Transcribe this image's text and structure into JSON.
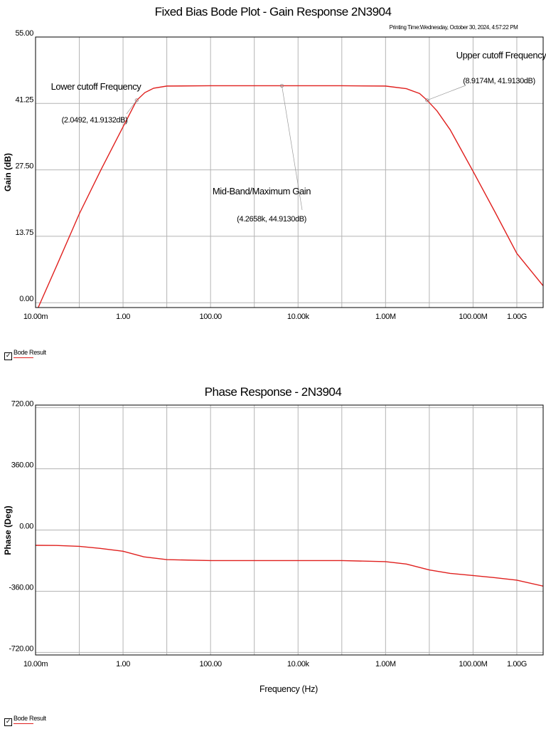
{
  "printing_time": "Printing Time:Wednesday, October 30, 2024, 4:57:22 PM",
  "series_color": "#e0201e",
  "grid_color": "#b4b4b4",
  "chart_data": [
    {
      "type": "line",
      "title": "Fixed Bias Bode Plot - Gain Response 2N3904",
      "ylabel": "Gain (dB)",
      "xlabel": "",
      "xscale": "log",
      "xlim": [
        0.01,
        4000000000
      ],
      "ylim": [
        -1,
        55
      ],
      "x_ticks": [
        {
          "value": 0.01,
          "label": "10.00m"
        },
        {
          "value": 1,
          "label": "1.00"
        },
        {
          "value": 100,
          "label": "100.00"
        },
        {
          "value": 10000,
          "label": "10.00k"
        },
        {
          "value": 1000000,
          "label": "1.00M"
        },
        {
          "value": 100000000,
          "label": "100.00M"
        },
        {
          "value": 1000000000,
          "label": "1.00G"
        }
      ],
      "y_ticks": [
        {
          "value": 55,
          "label": "55.00"
        },
        {
          "value": 41.25,
          "label": "41.25"
        },
        {
          "value": 27.5,
          "label": "27.50"
        },
        {
          "value": 13.75,
          "label": "13.75"
        },
        {
          "value": 0,
          "label": "0.00"
        }
      ],
      "series": [
        {
          "name": "Bode Result",
          "x": [
            0.0115,
            0.0316,
            0.1,
            0.316,
            1,
            2.05,
            3.16,
            5,
            10,
            100,
            1000,
            4266,
            10000,
            100000,
            1000000,
            3000000,
            6000000,
            8917400,
            15000000,
            30000000,
            100000000,
            316000000,
            1000000000,
            4000000000
          ],
          "y": [
            -1,
            8,
            18.4,
            27.6,
            36.4,
            41.9,
            43.5,
            44.4,
            44.85,
            44.91,
            44.913,
            44.913,
            44.913,
            44.91,
            44.85,
            44.3,
            43.3,
            41.91,
            39.7,
            35.8,
            27.2,
            18.8,
            10.2,
            3.5
          ]
        }
      ],
      "annotations": [
        {
          "label": "Lower cutoff Frequency",
          "value": "(2.0492, 41.9132dB)",
          "x": 2.0492,
          "y": 41.9132
        },
        {
          "label": "Mid-Band/Maximum Gain",
          "value": "(4.2658k, 44.9130dB)",
          "x": 4265.8,
          "y": 44.913
        },
        {
          "label": "Upper cutoff Frequency",
          "value": "(8.9174M, 41.9130dB)",
          "x": 8917400,
          "y": 41.913
        }
      ],
      "legend": "Bode Result"
    },
    {
      "type": "line",
      "title": "Phase Response - 2N3904",
      "ylabel": "Phase (Deg)",
      "xlabel": "Frequency (Hz)",
      "xscale": "log",
      "xlim": [
        0.01,
        4000000000
      ],
      "ylim": [
        -735,
        735
      ],
      "x_ticks": [
        {
          "value": 0.01,
          "label": "10.00m"
        },
        {
          "value": 1,
          "label": "1.00"
        },
        {
          "value": 100,
          "label": "100.00"
        },
        {
          "value": 10000,
          "label": "10.00k"
        },
        {
          "value": 1000000,
          "label": "1.00M"
        },
        {
          "value": 100000000,
          "label": "100.00M"
        },
        {
          "value": 1000000000,
          "label": "1.00G"
        }
      ],
      "y_ticks": [
        {
          "value": 720,
          "label": "720.00"
        },
        {
          "value": 360,
          "label": "360.00"
        },
        {
          "value": 0,
          "label": "0.00"
        },
        {
          "value": -360,
          "label": "-360.00"
        },
        {
          "value": -720,
          "label": "-720.00"
        }
      ],
      "series": [
        {
          "name": "Bode Result",
          "x": [
            0.01,
            0.03,
            0.1,
            0.3,
            1,
            3,
            10,
            100,
            1000,
            10000,
            100000,
            1000000,
            3000000,
            10000000,
            30000000,
            100000000,
            300000000,
            1000000000,
            4000000000
          ],
          "y": [
            -90,
            -91,
            -96,
            -108,
            -125,
            -158,
            -174,
            -180,
            -180,
            -180,
            -180,
            -186,
            -200,
            -235,
            -255,
            -268,
            -280,
            -295,
            -330
          ]
        }
      ],
      "legend": "Bode Result"
    }
  ]
}
